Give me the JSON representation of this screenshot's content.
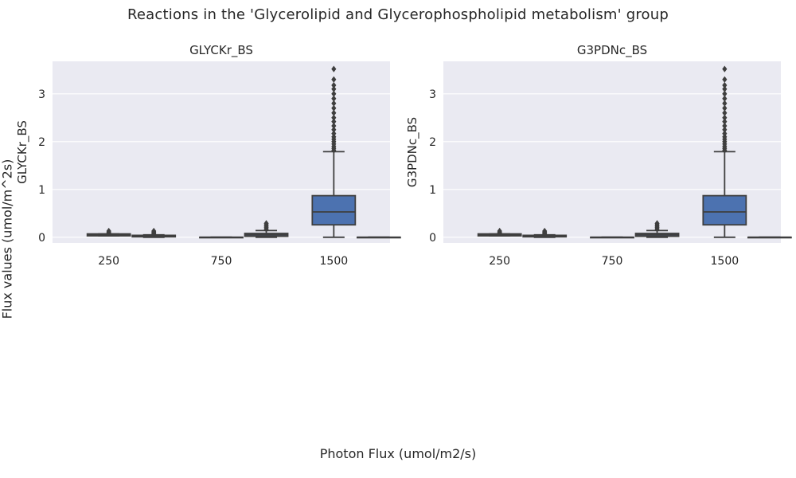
{
  "figure": {
    "title": "Reactions in the 'Glycerolipid and Glycerophospholipid metabolism' group",
    "xlabel": "Photon Flux (umol/m2/s)",
    "ylabel": "Flux values (umol/m^2s)"
  },
  "colors": {
    "background": "#eaeaf2",
    "grid": "#ffffff",
    "box_fill": "#4c72b0",
    "box_edge": "#3f3f3f"
  },
  "chart_data": [
    {
      "type": "box",
      "title": "GLYCKr_BS",
      "xlabel": "",
      "ylabel": "GLYCKr_BS",
      "categories": [
        "250",
        "750",
        "1500"
      ],
      "ylim": [
        -0.12,
        3.68
      ],
      "yticks": [
        0,
        1,
        2,
        3
      ],
      "grid": true,
      "boxes": [
        {
          "x": 0.0,
          "q1": 0.03,
          "median": 0.05,
          "q3": 0.07,
          "whisker_low": 0.03,
          "whisker_high": 0.07,
          "outliers": [
            0.09,
            0.11,
            0.13
          ]
        },
        {
          "x": 0.4,
          "q1": 0.01,
          "median": 0.02,
          "q3": 0.04,
          "whisker_low": 0.0,
          "whisker_high": 0.05,
          "outliers": [
            0.07,
            0.09,
            0.11,
            0.13
          ]
        },
        {
          "x": 1.0,
          "q1": 0.0,
          "median": 0.0,
          "q3": 0.0,
          "whisker_low": 0.0,
          "whisker_high": 0.0,
          "outliers": []
        },
        {
          "x": 1.4,
          "q1": 0.02,
          "median": 0.05,
          "q3": 0.08,
          "whisker_low": 0.0,
          "whisker_high": 0.14,
          "outliers": [
            0.17,
            0.2,
            0.23,
            0.26,
            0.29
          ]
        },
        {
          "x": 2.0,
          "q1": 0.26,
          "median": 0.53,
          "q3": 0.87,
          "whisker_low": 0.0,
          "whisker_high": 1.79,
          "outliers": [
            1.82,
            1.86,
            1.9,
            1.95,
            2.0,
            2.05,
            2.1,
            2.17,
            2.25,
            2.33,
            2.42,
            2.5,
            2.6,
            2.7,
            2.8,
            2.9,
            3.0,
            3.1,
            3.18,
            3.3,
            3.52
          ]
        },
        {
          "x": 2.4,
          "q1": 0.0,
          "median": 0.0,
          "q3": 0.0,
          "whisker_low": 0.0,
          "whisker_high": 0.0,
          "outliers": []
        }
      ]
    },
    {
      "type": "box",
      "title": "G3PDNc_BS",
      "xlabel": "",
      "ylabel": "G3PDNc_BS",
      "categories": [
        "250",
        "750",
        "1500"
      ],
      "ylim": [
        -0.12,
        3.68
      ],
      "yticks": [
        0,
        1,
        2,
        3
      ],
      "grid": true,
      "boxes": [
        {
          "x": 0.0,
          "q1": 0.03,
          "median": 0.05,
          "q3": 0.07,
          "whisker_low": 0.03,
          "whisker_high": 0.07,
          "outliers": [
            0.09,
            0.11,
            0.13
          ]
        },
        {
          "x": 0.4,
          "q1": 0.01,
          "median": 0.02,
          "q3": 0.04,
          "whisker_low": 0.0,
          "whisker_high": 0.05,
          "outliers": [
            0.07,
            0.09,
            0.11,
            0.13
          ]
        },
        {
          "x": 1.0,
          "q1": 0.0,
          "median": 0.0,
          "q3": 0.0,
          "whisker_low": 0.0,
          "whisker_high": 0.0,
          "outliers": []
        },
        {
          "x": 1.4,
          "q1": 0.02,
          "median": 0.05,
          "q3": 0.08,
          "whisker_low": 0.0,
          "whisker_high": 0.14,
          "outliers": [
            0.17,
            0.2,
            0.23,
            0.26,
            0.29
          ]
        },
        {
          "x": 2.0,
          "q1": 0.26,
          "median": 0.53,
          "q3": 0.87,
          "whisker_low": 0.0,
          "whisker_high": 1.79,
          "outliers": [
            1.82,
            1.86,
            1.9,
            1.95,
            2.0,
            2.05,
            2.1,
            2.17,
            2.25,
            2.33,
            2.42,
            2.5,
            2.6,
            2.7,
            2.8,
            2.9,
            3.0,
            3.1,
            3.18,
            3.3,
            3.52
          ]
        },
        {
          "x": 2.4,
          "q1": 0.0,
          "median": 0.0,
          "q3": 0.0,
          "whisker_low": 0.0,
          "whisker_high": 0.0,
          "outliers": []
        }
      ]
    }
  ]
}
